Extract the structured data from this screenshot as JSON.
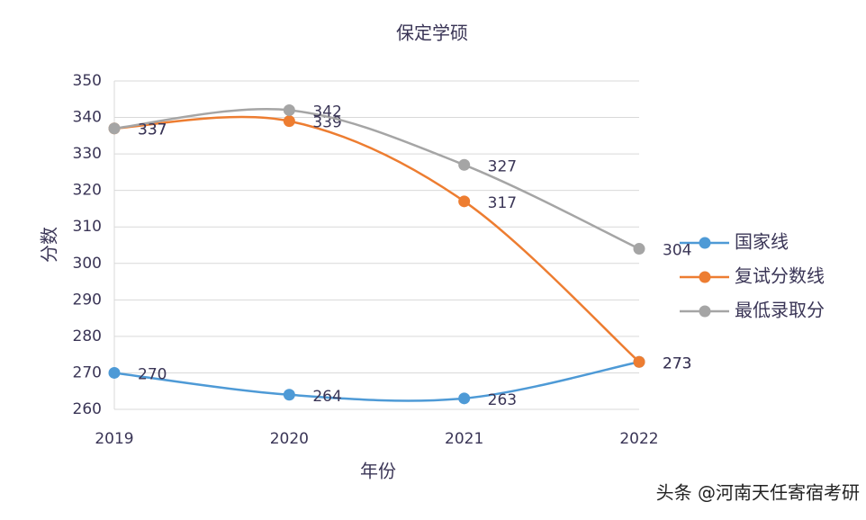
{
  "chart_data": {
    "type": "line",
    "title": "保定学硕",
    "x_label": "年份",
    "y_label": "分数",
    "categories": [
      "2019",
      "2020",
      "2021",
      "2022"
    ],
    "series": [
      {
        "name": "国家线",
        "color": "#4e9ad6",
        "values": [
          270,
          264,
          263,
          273
        ]
      },
      {
        "name": "复试分数线",
        "color": "#ed7d31",
        "values": [
          337,
          339,
          317,
          273
        ]
      },
      {
        "name": "最低录取分",
        "color": "#a5a5a5",
        "values": [
          337,
          342,
          327,
          304
        ]
      }
    ],
    "ylim": [
      260,
      350
    ],
    "yticks": [
      260,
      270,
      280,
      290,
      300,
      310,
      320,
      330,
      340,
      350
    ],
    "grid": true,
    "smooth": true,
    "legend": "right",
    "annotations": [
      "头条 @河南天任寄宿考研"
    ]
  }
}
